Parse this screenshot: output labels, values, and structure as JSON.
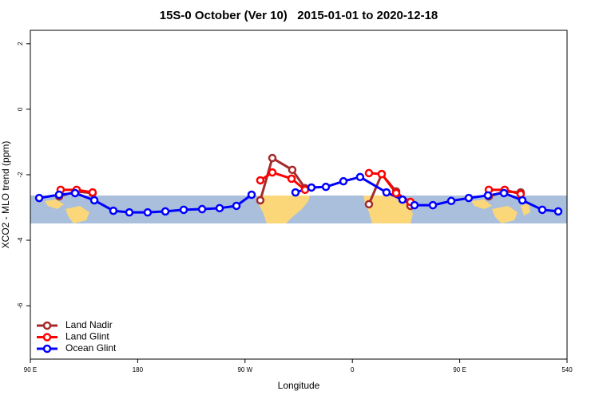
{
  "chart_data": {
    "type": "line",
    "title": "15S-0 October (Ver 10)   2015-01-01 to 2020-12-18",
    "x_label": "Longitude",
    "y_label": "XCO2 - MLO trend (ppm)",
    "xlim": [
      90,
      540
    ],
    "xticks": [
      {
        "value": 90,
        "label": "90 E"
      },
      180,
      {
        "value": 270,
        "label": "90 W"
      },
      {
        "value": 360,
        "label": "0"
      },
      {
        "value": 450,
        "label": "90 E"
      },
      540
    ],
    "ylim": [
      -7.63,
      2.41
    ],
    "yticks": [
      2,
      0,
      -2,
      -4,
      -6
    ],
    "legend": "bottom-left",
    "series": [
      {
        "name": "Land Nadir",
        "color": "#a52a2a",
        "x": [
          114.1,
          128.8,
          142.2,
          null,
          282.8,
          292.9,
          309.6,
          320.3,
          null,
          373.9,
          384.6,
          396.7,
          408.7,
          null,
          474.4,
          487.7,
          501.1
        ],
        "values": [
          -2.66,
          -2.51,
          -2.56,
          null,
          -2.78,
          -1.49,
          -1.85,
          -2.41,
          null,
          -2.9,
          -1.98,
          -2.51,
          -2.95,
          null,
          -2.66,
          -2.51,
          -2.54
        ]
      },
      {
        "name": "Land Glint",
        "color": "#ff0000",
        "x": [
          115.4,
          128.8,
          142.2,
          null,
          282.8,
          292.9,
          309.0,
          320.3,
          null,
          373.9,
          384.6,
          396.7,
          408.7,
          null,
          474.4,
          487.7,
          501.1
        ],
        "values": [
          -2.46,
          -2.46,
          -2.54,
          null,
          -2.17,
          -1.93,
          -2.12,
          -2.46,
          null,
          -1.95,
          -1.98,
          -2.56,
          -2.83,
          null,
          -2.46,
          -2.46,
          -2.59
        ]
      },
      {
        "name": "Ocean Glint",
        "color": "#0000ff",
        "x": [
          97.4,
          114.1,
          127.5,
          143.6,
          159.6,
          173.0,
          188.4,
          203.2,
          218.6,
          234.0,
          248.7,
          262.8,
          275.5,
          null,
          312.3,
          325.7,
          337.8,
          352.5,
          366.5,
          388.6,
          402.0,
          412.1,
          427.5,
          442.9,
          457.6,
          473.7,
          487.1,
          502.5,
          519.2,
          532.6
        ],
        "values": [
          -2.71,
          -2.61,
          -2.56,
          -2.78,
          -3.1,
          -3.15,
          -3.15,
          -3.12,
          -3.07,
          -3.05,
          -3.02,
          -2.95,
          -2.61,
          null,
          -2.54,
          -2.39,
          -2.37,
          -2.2,
          -2.07,
          -2.54,
          -2.76,
          -2.93,
          -2.93,
          -2.8,
          -2.71,
          -2.63,
          -2.56,
          -2.78,
          -3.07,
          -3.12
        ]
      }
    ]
  }
}
